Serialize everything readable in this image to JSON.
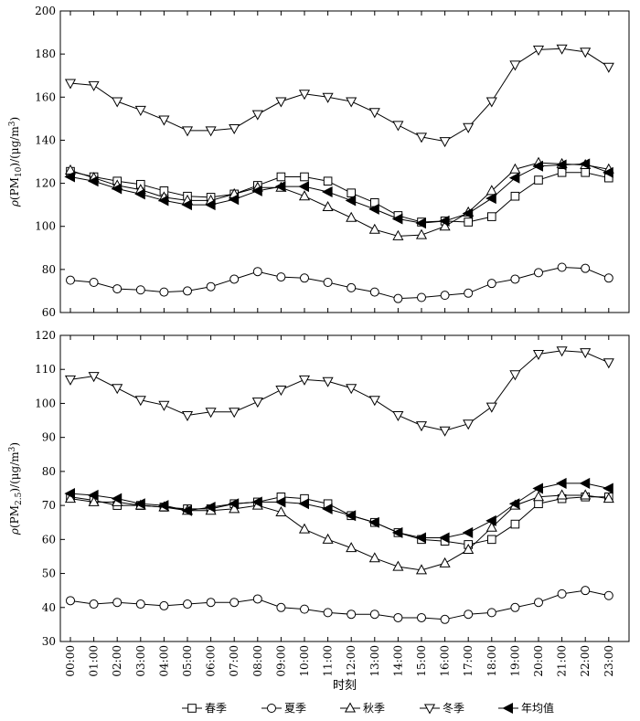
{
  "x_title": "时刻",
  "chart_data": [
    {
      "type": "line",
      "ylabel": "ρ(PM₁₀)/(μg/m³)",
      "ylabel_parts": {
        "prefix": "ρ(PM",
        "sub": "10",
        "middle": ")/(μg/m",
        "sup": "3",
        "suffix": ")"
      },
      "ylim": [
        60,
        200
      ],
      "yticks": [
        60,
        80,
        100,
        120,
        140,
        160,
        180,
        200
      ],
      "x": [
        "00:00",
        "01:00",
        "02:00",
        "03:00",
        "04:00",
        "05:00",
        "06:00",
        "07:00",
        "08:00",
        "09:00",
        "10:00",
        "11:00",
        "12:00",
        "13:00",
        "14:00",
        "15:00",
        "16:00",
        "17:00",
        "18:00",
        "19:00",
        "20:00",
        "21:00",
        "22:00",
        "23:00"
      ],
      "series": [
        {
          "name": "春季",
          "marker": "square",
          "values": [
            125.5,
            123,
            121,
            119.5,
            116.5,
            114,
            113.5,
            115,
            119,
            123,
            123,
            121,
            115.5,
            111,
            105,
            102,
            102.5,
            102,
            104.5,
            114,
            121.5,
            125,
            125,
            122.5
          ]
        },
        {
          "name": "夏季",
          "marker": "circle",
          "values": [
            75,
            74,
            71,
            70.5,
            69.5,
            70,
            72,
            75.5,
            79,
            76.5,
            76,
            74,
            71.5,
            69.5,
            66.5,
            67,
            68,
            69,
            73.5,
            75.5,
            78.5,
            81,
            80.5,
            76
          ]
        },
        {
          "name": "秋季",
          "marker": "triangle-up",
          "values": [
            126,
            122.5,
            119,
            117,
            113.5,
            112,
            112,
            115,
            118,
            118,
            114,
            109,
            104,
            98.5,
            95.5,
            96,
            100,
            106.5,
            116.5,
            126.5,
            129.5,
            129,
            128.5,
            126.5
          ]
        },
        {
          "name": "冬季",
          "marker": "triangle-down",
          "values": [
            166.5,
            165.5,
            158,
            154,
            149.5,
            144.5,
            144.5,
            145.5,
            152,
            158,
            161.5,
            160,
            158,
            153,
            147,
            141.5,
            139.5,
            146,
            158,
            175,
            182,
            182.5,
            181,
            174
          ]
        },
        {
          "name": "年均值",
          "marker": "triangle-left",
          "values": [
            123,
            121,
            117.5,
            115,
            112,
            110,
            110,
            112.5,
            116.5,
            118.5,
            118.5,
            116,
            112,
            108,
            103.5,
            101.5,
            102.5,
            106,
            113,
            122.5,
            128,
            128.5,
            129,
            125
          ]
        }
      ]
    },
    {
      "type": "line",
      "ylabel": "ρ(PM₂.₅)/(μg/m³)",
      "ylabel_parts": {
        "prefix": "ρ(PM",
        "sub": "2.5",
        "middle": ")/(μg/m",
        "sup": "3",
        "suffix": ")"
      },
      "ylim": [
        30,
        120
      ],
      "yticks": [
        30,
        40,
        50,
        60,
        70,
        80,
        90,
        100,
        110,
        120
      ],
      "x": [
        "00:00",
        "01:00",
        "02:00",
        "03:00",
        "04:00",
        "05:00",
        "06:00",
        "07:00",
        "08:00",
        "09:00",
        "10:00",
        "11:00",
        "12:00",
        "13:00",
        "14:00",
        "15:00",
        "16:00",
        "17:00",
        "18:00",
        "19:00",
        "20:00",
        "21:00",
        "22:00",
        "23:00"
      ],
      "series": [
        {
          "name": "春季",
          "marker": "square",
          "values": [
            72.5,
            71.5,
            70,
            70,
            69.5,
            69,
            69,
            70.5,
            71,
            72.5,
            72,
            70.5,
            67,
            65,
            62,
            60,
            59.5,
            58.5,
            60,
            64.5,
            70.5,
            72,
            72.5,
            72.5
          ]
        },
        {
          "name": "夏季",
          "marker": "circle",
          "values": [
            42,
            41,
            41.5,
            41,
            40.5,
            41,
            41.5,
            41.5,
            42.5,
            40,
            39.5,
            38.5,
            38,
            38,
            37,
            37,
            36.5,
            38,
            38.5,
            40,
            41.5,
            44,
            45,
            43.5
          ]
        },
        {
          "name": "秋季",
          "marker": "triangle-up",
          "values": [
            72,
            71,
            71,
            70,
            69.5,
            68.5,
            68.5,
            69,
            70,
            68,
            63,
            60,
            57.5,
            54.5,
            52,
            51,
            53,
            57,
            63.5,
            70,
            72.5,
            73,
            73,
            72
          ]
        },
        {
          "name": "冬季",
          "marker": "triangle-down",
          "values": [
            107,
            108,
            104.5,
            101,
            99.5,
            96.5,
            97.5,
            97.5,
            100.5,
            104,
            107,
            106.5,
            104.5,
            101,
            96.5,
            93.5,
            92,
            94,
            99,
            108.5,
            114.5,
            115.5,
            115,
            112
          ]
        },
        {
          "name": "年均值",
          "marker": "triangle-left",
          "values": [
            73.5,
            73,
            72,
            70.5,
            70,
            68.5,
            69.5,
            70.5,
            71,
            71,
            70.5,
            69,
            67,
            65,
            62,
            60.5,
            60.5,
            62,
            65.5,
            70.5,
            75,
            76.5,
            76.5,
            75
          ]
        }
      ]
    }
  ],
  "legend": [
    "春季",
    "夏季",
    "秋季",
    "冬季",
    "年均值"
  ]
}
